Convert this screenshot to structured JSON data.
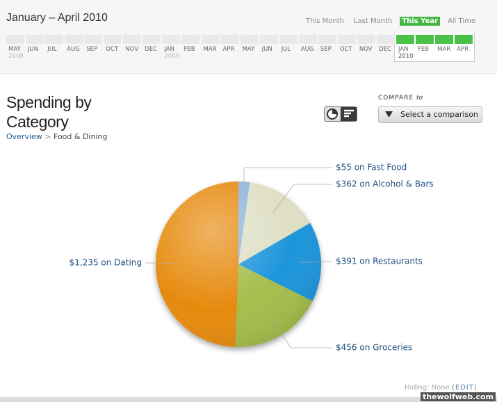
{
  "header": {
    "title": "January – April 2010",
    "periods": [
      "This Month",
      "Last Month",
      "This Year",
      "All Time"
    ],
    "active_period": "This Year",
    "timeline": [
      {
        "month": "MAY",
        "year": "2008"
      },
      {
        "month": "JUN"
      },
      {
        "month": "JUL"
      },
      {
        "month": "AUG"
      },
      {
        "month": "SEP"
      },
      {
        "month": "OCT"
      },
      {
        "month": "NOV"
      },
      {
        "month": "DEC"
      },
      {
        "month": "JAN",
        "year": "2009"
      },
      {
        "month": "FEB"
      },
      {
        "month": "MAR"
      },
      {
        "month": "APR"
      },
      {
        "month": "MAY"
      },
      {
        "month": "JUN"
      },
      {
        "month": "JUL"
      },
      {
        "month": "AUG"
      },
      {
        "month": "SEP"
      },
      {
        "month": "OCT"
      },
      {
        "month": "NOV"
      },
      {
        "month": "DEC"
      },
      {
        "month": "JAN",
        "year": "2010",
        "selected": true
      },
      {
        "month": "FEB",
        "selected": true
      },
      {
        "month": "MAR",
        "selected": true
      },
      {
        "month": "APR",
        "selected": true
      }
    ]
  },
  "section": {
    "title": "Spending by Category",
    "breadcrumb": [
      "Overview",
      "Food & Dining"
    ],
    "separator": ">",
    "compare_label": "COMPARE",
    "compare_to": "to",
    "compare_button": "Select a comparison",
    "hiding": "Hiding: None",
    "edit": "(EDIT)",
    "watermark": "thewolfweb.com"
  },
  "chart_data": {
    "type": "pie",
    "values": [
      55,
      362,
      391,
      456,
      1235
    ],
    "value_labels": [
      "$55 on Fast Food",
      "$362 on Alcohol & Bars",
      "$391 on Restaurants",
      "$456 on Groceries",
      "$1,235 on Dating"
    ],
    "colors": [
      "#8fb4d8",
      "#dedfc4",
      "#1e95db",
      "#a4bd4b",
      "#e68a0c"
    ]
  }
}
